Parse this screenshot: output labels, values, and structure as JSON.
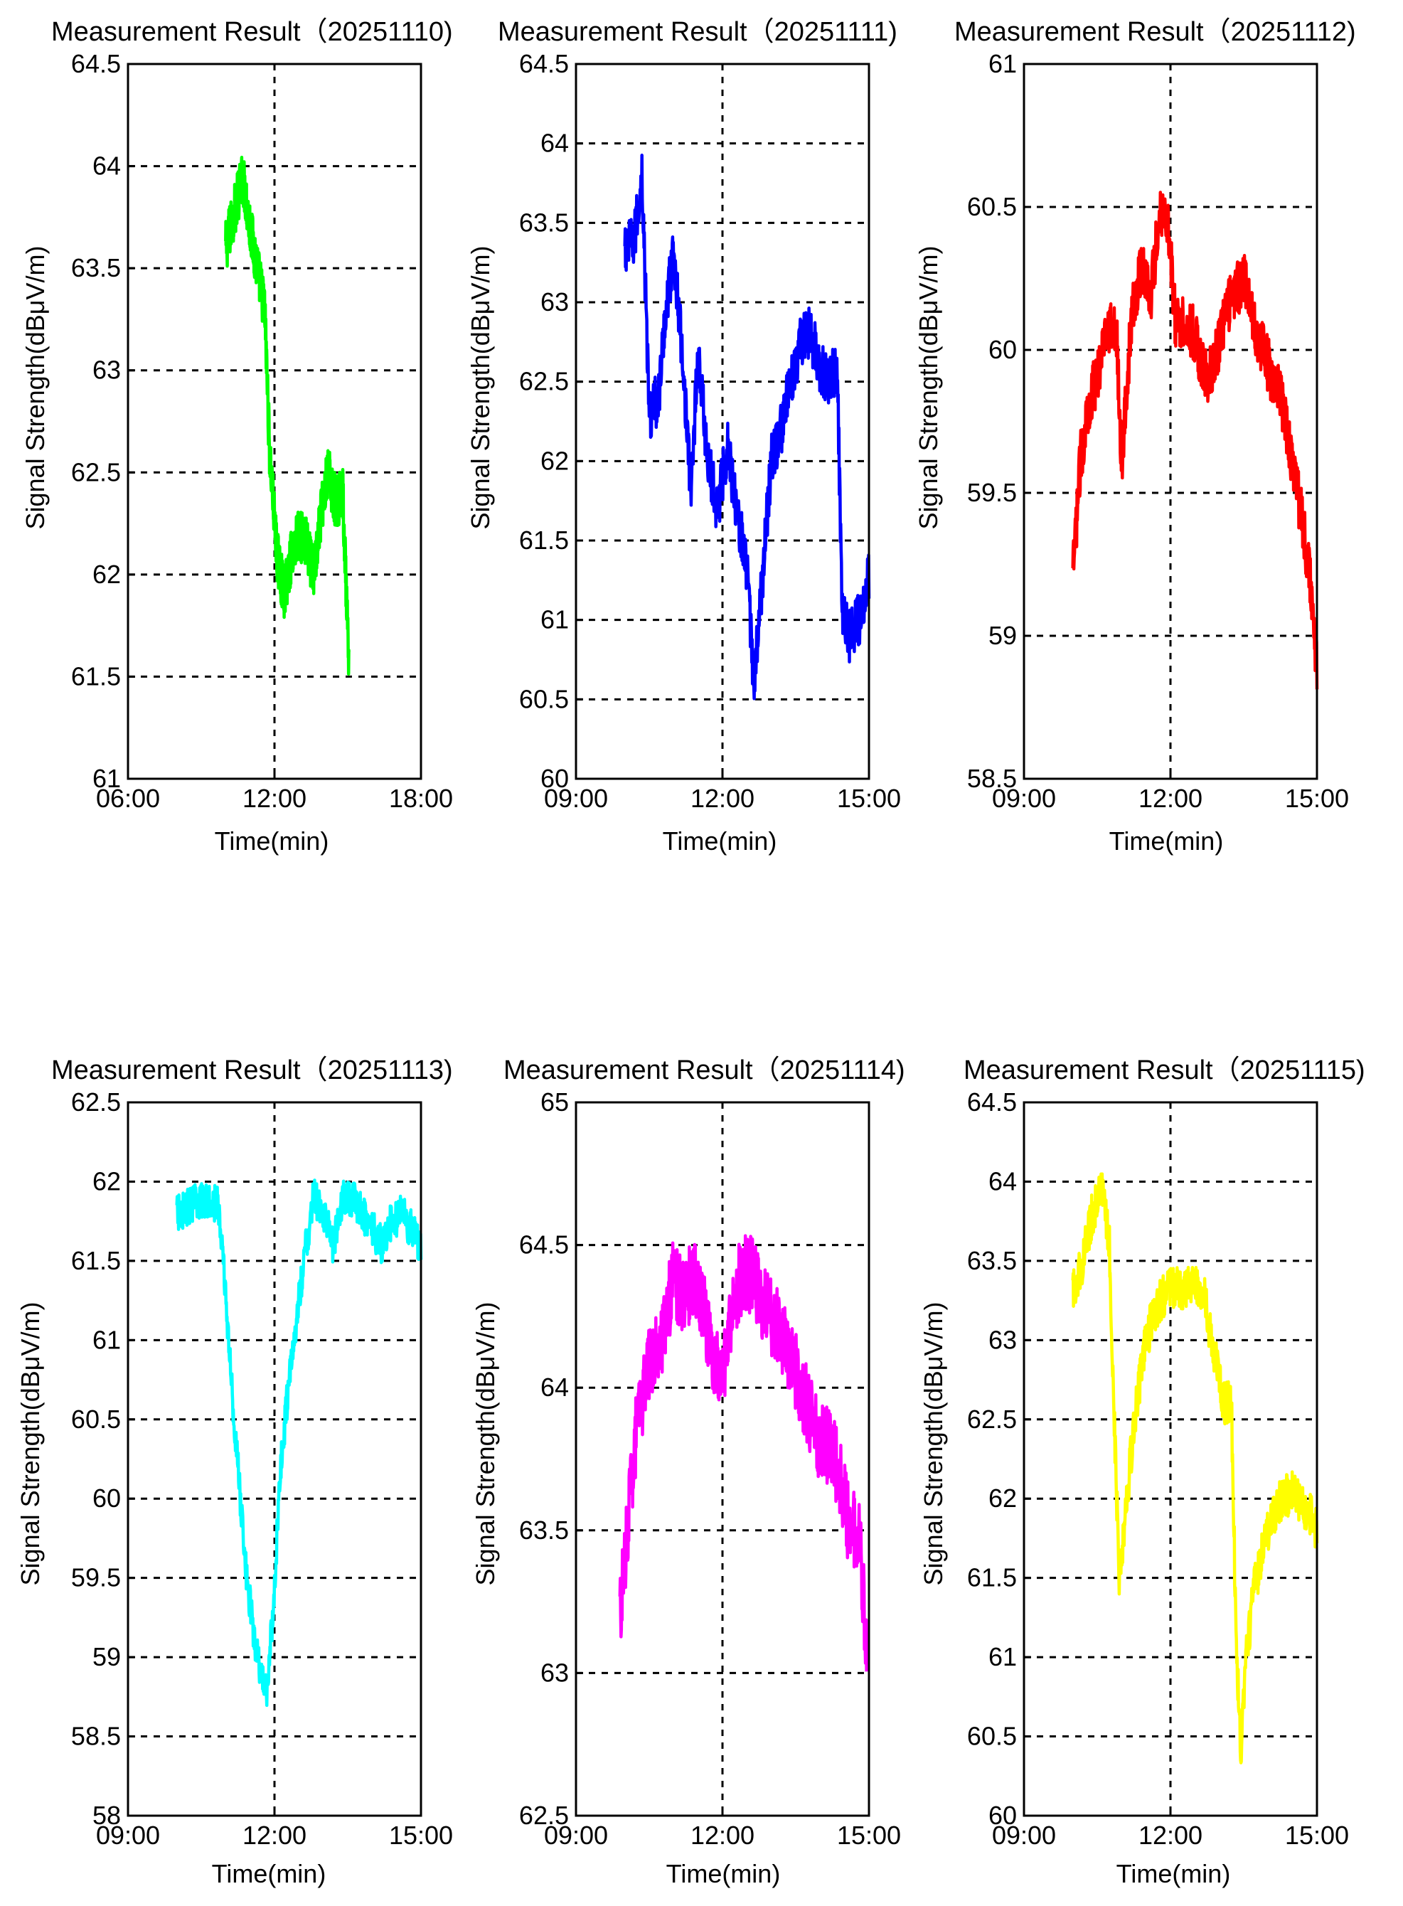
{
  "chart_data": [
    {
      "type": "line",
      "title": "Measurement Result（20251110)",
      "xlabel": "Time(min)",
      "ylabel": "Signal Strength(dBμV/m)",
      "xticks": [
        "06:00",
        "12:00",
        "18:00"
      ],
      "xlim_hours": [
        6,
        18
      ],
      "ylim": [
        61,
        64.5
      ],
      "yticks": [
        "61",
        "61.5",
        "62",
        "62.5",
        "63",
        "63.5",
        "64",
        "64.5"
      ],
      "grid": true,
      "series": [
        {
          "name": "20251110",
          "color": "#00ff00",
          "noise": 0.13,
          "points": [
            [
              10.0,
              63.6
            ],
            [
              10.4,
              63.8
            ],
            [
              10.7,
              63.95
            ],
            [
              11.0,
              63.7
            ],
            [
              11.3,
              63.5
            ],
            [
              11.6,
              63.3
            ],
            [
              11.8,
              62.6
            ],
            [
              12.1,
              62.1
            ],
            [
              12.4,
              61.9
            ],
            [
              12.7,
              62.1
            ],
            [
              13.0,
              62.2
            ],
            [
              13.3,
              62.15
            ],
            [
              13.6,
              62.0
            ],
            [
              13.9,
              62.3
            ],
            [
              14.2,
              62.5
            ],
            [
              14.5,
              62.35
            ],
            [
              14.8,
              62.4
            ],
            [
              15.0,
              61.7
            ],
            [
              15.05,
              61.5
            ]
          ]
        }
      ]
    },
    {
      "type": "line",
      "title": "Measurement Result（20251111)",
      "xlabel": "Time(min)",
      "ylabel": "Signal Strength(dBμV/m)",
      "xticks": [
        "09:00",
        "12:00",
        "15:00"
      ],
      "xlim_hours": [
        9,
        15
      ],
      "ylim": [
        60,
        64.5
      ],
      "yticks": [
        "60",
        "60.5",
        "61",
        "61.5",
        "62",
        "62.5",
        "63",
        "63.5",
        "64",
        "64.5"
      ],
      "grid": true,
      "series": [
        {
          "name": "20251111",
          "color": "#0000ff",
          "noise": 0.17,
          "points": [
            [
              10.0,
              63.3
            ],
            [
              10.2,
              63.4
            ],
            [
              10.35,
              63.8
            ],
            [
              10.5,
              62.3
            ],
            [
              10.7,
              62.4
            ],
            [
              10.85,
              63.0
            ],
            [
              11.0,
              63.3
            ],
            [
              11.2,
              62.6
            ],
            [
              11.35,
              61.8
            ],
            [
              11.5,
              62.7
            ],
            [
              11.7,
              62.0
            ],
            [
              11.9,
              61.7
            ],
            [
              12.1,
              62.1
            ],
            [
              12.3,
              61.7
            ],
            [
              12.5,
              61.3
            ],
            [
              12.65,
              60.6
            ],
            [
              12.8,
              61.2
            ],
            [
              13.0,
              62.0
            ],
            [
              13.2,
              62.2
            ],
            [
              13.4,
              62.5
            ],
            [
              13.6,
              62.75
            ],
            [
              13.8,
              62.8
            ],
            [
              14.0,
              62.6
            ],
            [
              14.2,
              62.5
            ],
            [
              14.35,
              62.6
            ],
            [
              14.45,
              61.1
            ],
            [
              14.6,
              60.9
            ],
            [
              14.8,
              61.0
            ],
            [
              15.0,
              61.3
            ]
          ]
        }
      ]
    },
    {
      "type": "line",
      "title": "Measurement Result（20251112)",
      "xlabel": "Time(min)",
      "ylabel": "Signal Strength(dBμV/m)",
      "xticks": [
        "09:00",
        "12:00",
        "15:00"
      ],
      "xlim_hours": [
        9,
        15
      ],
      "ylim": [
        58.5,
        61
      ],
      "yticks": [
        "58.5",
        "59",
        "59.5",
        "60",
        "60.5",
        "61"
      ],
      "grid": true,
      "series": [
        {
          "name": "20251112",
          "color": "#ff0000",
          "noise": 0.1,
          "points": [
            [
              10.0,
              59.2
            ],
            [
              10.15,
              59.6
            ],
            [
              10.3,
              59.8
            ],
            [
              10.5,
              59.9
            ],
            [
              10.7,
              60.1
            ],
            [
              10.9,
              60.05
            ],
            [
              11.0,
              59.6
            ],
            [
              11.2,
              60.1
            ],
            [
              11.4,
              60.3
            ],
            [
              11.6,
              60.2
            ],
            [
              11.8,
              60.5
            ],
            [
              11.95,
              60.45
            ],
            [
              12.1,
              60.1
            ],
            [
              12.3,
              60.1
            ],
            [
              12.5,
              60.05
            ],
            [
              12.7,
              59.9
            ],
            [
              12.9,
              59.95
            ],
            [
              13.1,
              60.1
            ],
            [
              13.3,
              60.2
            ],
            [
              13.5,
              60.25
            ],
            [
              13.7,
              60.1
            ],
            [
              13.9,
              60.0
            ],
            [
              14.1,
              59.9
            ],
            [
              14.3,
              59.8
            ],
            [
              14.5,
              59.6
            ],
            [
              14.7,
              59.4
            ],
            [
              14.85,
              59.2
            ],
            [
              15.0,
              58.9
            ]
          ]
        }
      ]
    },
    {
      "type": "line",
      "title": "Measurement Result（20251113)",
      "xlabel": "Time(min)",
      "ylabel": "Signal Strength(dBμV/m)",
      "xticks": [
        "09:00",
        "12:00",
        "15:00"
      ],
      "xlim_hours": [
        9,
        15
      ],
      "ylim": [
        58,
        62.5
      ],
      "yticks": [
        "58",
        "58.5",
        "59",
        "59.5",
        "60",
        "60.5",
        "61",
        "61.5",
        "62",
        "62.5"
      ],
      "grid": true,
      "series": [
        {
          "name": "20251113",
          "color": "#00ffff",
          "noise": 0.12,
          "points": [
            [
              10.0,
              61.8
            ],
            [
              10.3,
              61.85
            ],
            [
              10.6,
              61.9
            ],
            [
              10.85,
              61.85
            ],
            [
              11.0,
              61.3
            ],
            [
              11.1,
              60.8
            ],
            [
              11.25,
              60.2
            ],
            [
              11.4,
              59.6
            ],
            [
              11.55,
              59.2
            ],
            [
              11.7,
              58.9
            ],
            [
              11.85,
              58.8
            ],
            [
              12.0,
              59.4
            ],
            [
              12.1,
              60.1
            ],
            [
              12.25,
              60.6
            ],
            [
              12.4,
              61.0
            ],
            [
              12.6,
              61.5
            ],
            [
              12.8,
              61.9
            ],
            [
              13.0,
              61.8
            ],
            [
              13.2,
              61.6
            ],
            [
              13.4,
              61.9
            ],
            [
              13.6,
              61.9
            ],
            [
              13.8,
              61.8
            ],
            [
              14.0,
              61.7
            ],
            [
              14.2,
              61.6
            ],
            [
              14.4,
              61.75
            ],
            [
              14.6,
              61.8
            ],
            [
              14.8,
              61.7
            ],
            [
              15.0,
              61.6
            ]
          ]
        }
      ]
    },
    {
      "type": "line",
      "title": "Measurement Result（20251114)",
      "xlabel": "Time(min)",
      "ylabel": "Signal Strength(dBμV/m)",
      "xticks": [
        "09:00",
        "12:00",
        "15:00"
      ],
      "xlim_hours": [
        9,
        15
      ],
      "ylim": [
        62.5,
        65
      ],
      "yticks": [
        "62.5",
        "63",
        "63.5",
        "64",
        "64.5",
        "65"
      ],
      "grid": true,
      "series": [
        {
          "name": "20251114",
          "color": "#ff00ff",
          "noise": 0.14,
          "points": [
            [
              9.9,
              63.2
            ],
            [
              10.05,
              63.5
            ],
            [
              10.2,
              63.8
            ],
            [
              10.4,
              64.0
            ],
            [
              10.6,
              64.15
            ],
            [
              10.8,
              64.2
            ],
            [
              11.0,
              64.4
            ],
            [
              11.2,
              64.3
            ],
            [
              11.4,
              64.4
            ],
            [
              11.6,
              64.3
            ],
            [
              11.8,
              64.1
            ],
            [
              12.0,
              64.0
            ],
            [
              12.2,
              64.3
            ],
            [
              12.4,
              64.4
            ],
            [
              12.6,
              64.4
            ],
            [
              12.8,
              64.3
            ],
            [
              13.0,
              64.25
            ],
            [
              13.2,
              64.2
            ],
            [
              13.4,
              64.1
            ],
            [
              13.6,
              64.0
            ],
            [
              13.8,
              63.9
            ],
            [
              14.0,
              63.8
            ],
            [
              14.2,
              63.8
            ],
            [
              14.4,
              63.7
            ],
            [
              14.6,
              63.5
            ],
            [
              14.8,
              63.5
            ],
            [
              14.95,
              63.1
            ]
          ]
        }
      ]
    },
    {
      "type": "line",
      "title": "Measurement Result（20251115)",
      "xlabel": "Time(min)",
      "ylabel": "Signal Strength(dBμV/m)",
      "xticks": [
        "09:00",
        "12:00",
        "15:00"
      ],
      "xlim_hours": [
        9,
        15
      ],
      "ylim": [
        60,
        64.5
      ],
      "yticks": [
        "60",
        "60.5",
        "61",
        "61.5",
        "62",
        "62.5",
        "63",
        "63.5",
        "64",
        "64.5"
      ],
      "grid": true,
      "series": [
        {
          "name": "20251115",
          "color": "#ffff00",
          "noise": 0.14,
          "points": [
            [
              10.0,
              63.3
            ],
            [
              10.2,
              63.5
            ],
            [
              10.4,
              63.8
            ],
            [
              10.6,
              63.95
            ],
            [
              10.75,
              63.6
            ],
            [
              10.85,
              62.5
            ],
            [
              10.95,
              61.5
            ],
            [
              11.1,
              62.0
            ],
            [
              11.3,
              62.6
            ],
            [
              11.5,
              63.0
            ],
            [
              11.7,
              63.2
            ],
            [
              11.9,
              63.3
            ],
            [
              12.1,
              63.35
            ],
            [
              12.3,
              63.3
            ],
            [
              12.5,
              63.4
            ],
            [
              12.7,
              63.25
            ],
            [
              12.9,
              62.9
            ],
            [
              13.1,
              62.6
            ],
            [
              13.25,
              62.6
            ],
            [
              13.35,
              61.0
            ],
            [
              13.45,
              60.4
            ],
            [
              13.55,
              61.0
            ],
            [
              13.7,
              61.4
            ],
            [
              13.9,
              61.7
            ],
            [
              14.1,
              61.9
            ],
            [
              14.3,
              62.0
            ],
            [
              14.5,
              62.05
            ],
            [
              14.7,
              61.95
            ],
            [
              14.85,
              61.9
            ],
            [
              15.0,
              61.8
            ]
          ]
        }
      ]
    }
  ]
}
